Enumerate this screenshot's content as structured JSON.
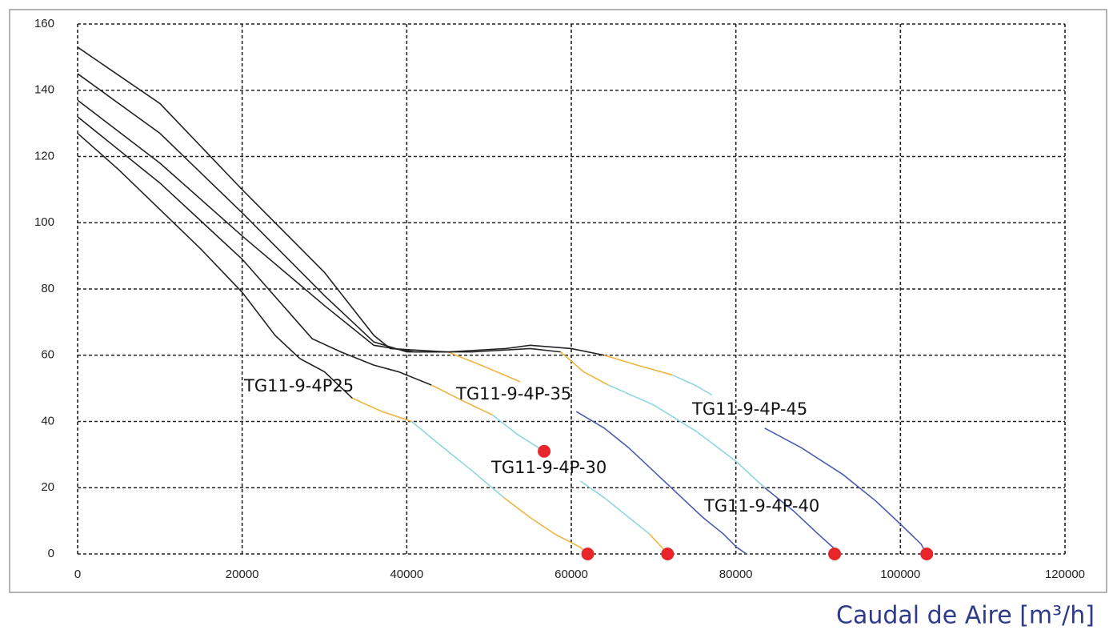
{
  "chart_data": {
    "type": "line",
    "xlabel": "Caudal de Aire [m³/h]",
    "xlim": [
      0,
      120000
    ],
    "ylim": [
      0,
      160
    ],
    "xticks": [
      0,
      20000,
      40000,
      60000,
      80000,
      100000,
      120000
    ],
    "yticks": [
      0,
      20,
      40,
      60,
      80,
      100,
      120,
      140,
      160
    ],
    "grid": true,
    "marker_color": "#e8262a",
    "series": [
      {
        "name": "TG11-9-4P25",
        "segments": [
          {
            "color": "#222222",
            "x": [
              0,
              5000,
              10000,
              15000,
              20000,
              24000,
              27000,
              30000,
              33400
            ],
            "y": [
              127,
              116,
              104,
              92,
              79,
              66,
              59,
              55,
              47
            ]
          },
          {
            "color": "#f0b440",
            "x": [
              33400,
              37000,
              40600
            ],
            "y": [
              47,
              43,
              40
            ]
          },
          {
            "color": "#8ed6e0",
            "x": [
              40600,
              44000,
              48000,
              51800
            ],
            "y": [
              40,
              33,
              25,
              17
            ]
          },
          {
            "color": "#f0b440",
            "x": [
              51800,
              55000,
              58000,
              61100,
              62000
            ],
            "y": [
              17,
              11,
              6,
              2,
              0
            ]
          }
        ]
      },
      {
        "name": "TG11-9-4P-35",
        "segments": [
          {
            "color": "#222222",
            "x": [
              0,
              10000,
              20000,
              28500,
              32000,
              36000,
              39000,
              43000
            ],
            "y": [
              132,
              112,
              89,
              65,
              61,
              57,
              55,
              51
            ]
          },
          {
            "color": "#f0b440",
            "x": [
              43000,
              47000,
              50400
            ],
            "y": [
              51,
              46,
              42
            ]
          },
          {
            "color": "#8ed6e0",
            "x": [
              50400,
              53500,
              56700
            ],
            "y": [
              42,
              36,
              31
            ]
          }
        ]
      },
      {
        "name": "TG11-9-4P-30",
        "segments": [
          {
            "color": "#222222",
            "x": [
              0,
              10000,
              20000,
              30000,
              36000,
              41000,
              45000
            ],
            "y": [
              137,
              118,
              96,
              75,
              63,
              61,
              61
            ]
          },
          {
            "color": "#f0b440",
            "x": [
              45000,
              49000,
              53800
            ],
            "y": [
              61,
              57,
              52
            ]
          },
          {
            "color": "#8ed6e0",
            "x": [
              61100,
              64000,
              67000,
              69500
            ],
            "y": [
              22,
              17,
              11,
              6
            ]
          },
          {
            "color": "#f0b440",
            "x": [
              69500,
              71000,
              71700
            ],
            "y": [
              6,
              2,
              0
            ]
          }
        ]
      },
      {
        "name": "TG11-9-4P-40",
        "segments": [
          {
            "color": "#222222",
            "x": [
              0,
              10000,
              20000,
              30000,
              36000,
              40000,
              48000,
              55000,
              58700
            ],
            "y": [
              145,
              127,
              103,
              78,
              64,
              61,
              61,
              62,
              61
            ]
          },
          {
            "color": "#f0b440",
            "x": [
              58700,
              61500,
              64500
            ],
            "y": [
              61,
              55,
              51
            ]
          },
          {
            "color": "#8ed6e0",
            "x": [
              64500,
              70000,
              75200,
              80000,
              83500
            ],
            "y": [
              51,
              45,
              37,
              28,
              20
            ]
          },
          {
            "color": "#4a5cb0",
            "x": [
              83500,
              87000,
              90000,
              91800,
              92000
            ],
            "y": [
              20,
              13,
              6,
              2,
              0
            ]
          }
        ]
      },
      {
        "name": "TG11-9-4P-45",
        "segments": [
          {
            "color": "#222222",
            "x": [
              0,
              10000,
              20000,
              30000,
              36000,
              38000,
              45000,
              52000,
              55000,
              60000,
              64000
            ],
            "y": [
              153,
              136,
              110,
              85,
              66,
              62,
              61,
              62,
              63,
              62,
              60
            ]
          },
          {
            "color": "#f0b440",
            "x": [
              64000,
              68000,
              72300
            ],
            "y": [
              60,
              57,
              54
            ]
          },
          {
            "color": "#8ed6e0",
            "x": [
              72300,
              75000,
              77100
            ],
            "y": [
              54,
              51,
              48
            ]
          },
          {
            "color": "#4a5cb0",
            "x": [
              60600,
              64000,
              67000,
              70000,
              73000,
              76000,
              78500,
              80100,
              81300
            ],
            "y": [
              43,
              38,
              32,
              25,
              18,
              11,
              6,
              2,
              0
            ]
          },
          {
            "color": "#4a5cb0",
            "x": [
              83500,
              88000,
              93000,
              97000,
              100000,
              102500,
              103200
            ],
            "y": [
              38,
              32,
              24,
              16,
              9,
              3,
              0
            ]
          }
        ]
      }
    ]
  }
}
